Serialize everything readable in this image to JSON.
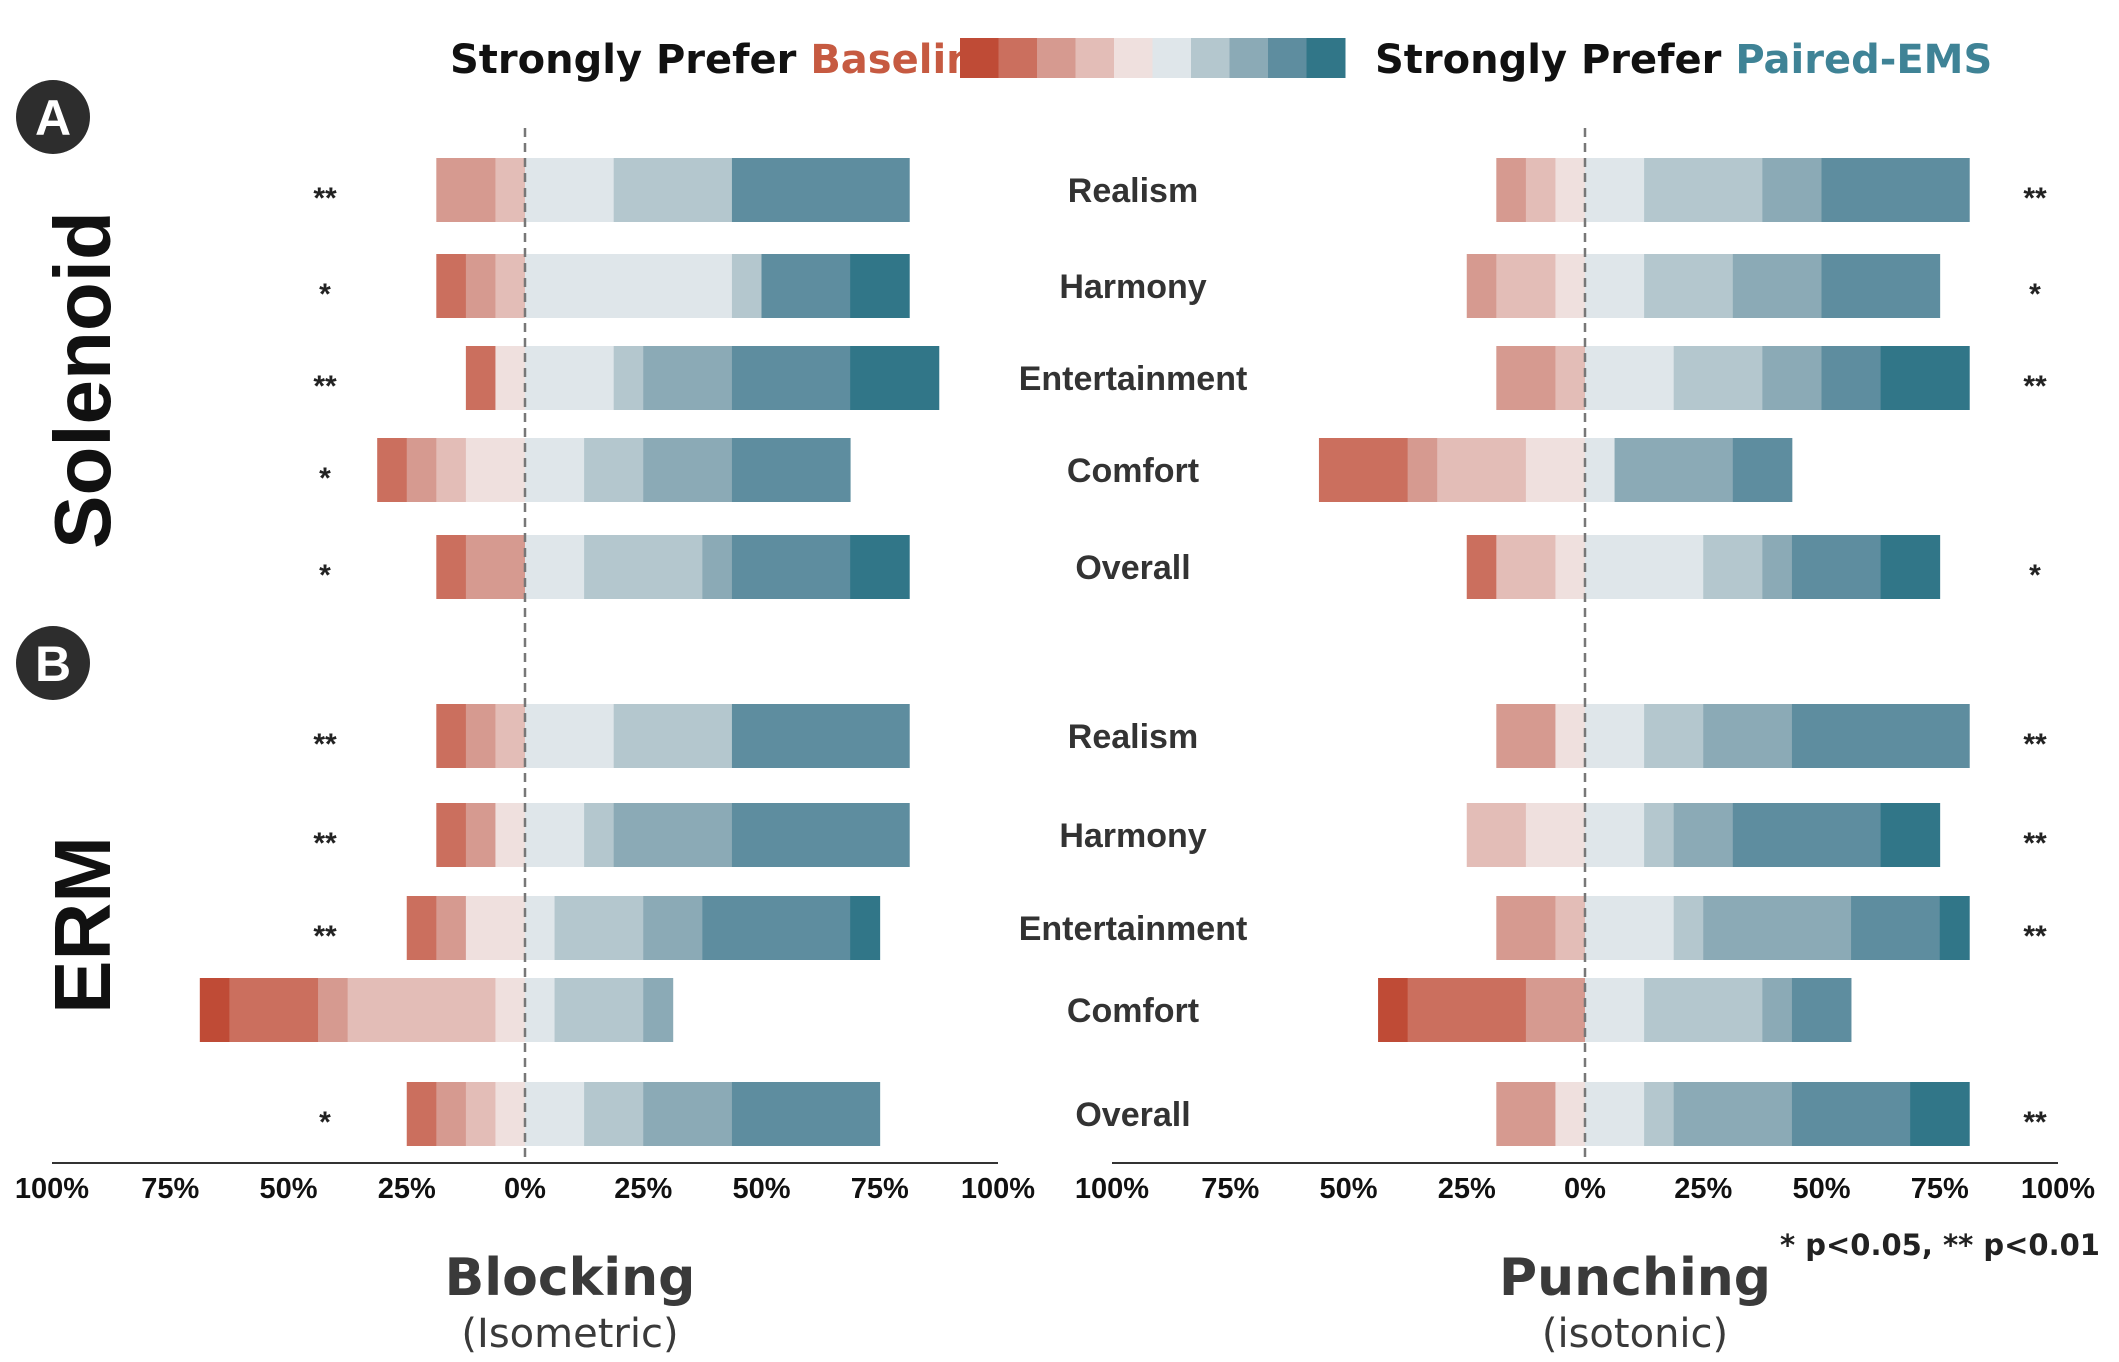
{
  "legend": {
    "left_prefix": "Strongly Prefer ",
    "left_highlight": "Baseline",
    "right_prefix": "Strongly Prefer ",
    "right_highlight": "Paired-EMS",
    "left_highlight_color": "#c65a41",
    "right_highlight_color": "#3f8396",
    "scale_colors": [
      "#bf4b36",
      "#cb6f5e",
      "#d69a90",
      "#e3bdb7",
      "#efe0de",
      "#dfe6ea",
      "#b4c7ce",
      "#8baab6",
      "#5e8d9f",
      "#317688"
    ]
  },
  "groups": [
    {
      "badge": "A",
      "label": "Solenoid"
    },
    {
      "badge": "B",
      "label": "ERM"
    }
  ],
  "note": "* p<0.05, ** p<0.01",
  "chart_data": {
    "type": "bar",
    "orientation": "horizontal-diverging-stacked",
    "categories": [
      "Realism",
      "Harmony",
      "Entertainment",
      "Comfort",
      "Overall"
    ],
    "scale_levels": [
      "strongly-prefer-baseline-1",
      "baseline-2",
      "baseline-3",
      "baseline-4",
      "baseline-5",
      "paired-ems-1",
      "paired-ems-2",
      "paired-ems-3",
      "paired-ems-4",
      "strongly-prefer-paired-ems-5"
    ],
    "x_ticks": [
      "100%",
      "75%",
      "50%",
      "25%",
      "0%",
      "25%",
      "50%",
      "75%",
      "100%"
    ],
    "xlim": [
      -100,
      100
    ],
    "panels": [
      {
        "title": "Blocking",
        "subtitle": "(Isometric)",
        "groups": [
          {
            "group": "Solenoid",
            "rows": [
              {
                "category": "Realism",
                "sig": "**",
                "segments": [
                  0,
                  0,
                  12.5,
                  6.25,
                  0,
                  18.75,
                  25,
                  0,
                  37.5,
                  0
                ]
              },
              {
                "category": "Harmony",
                "sig": "*",
                "segments": [
                  0,
                  6.25,
                  6.25,
                  6.25,
                  0,
                  43.75,
                  6.25,
                  0,
                  18.75,
                  12.5
                ]
              },
              {
                "category": "Entertainment",
                "sig": "**",
                "segments": [
                  0,
                  6.25,
                  0,
                  0,
                  6.25,
                  18.75,
                  6.25,
                  18.75,
                  25,
                  18.75
                ]
              },
              {
                "category": "Comfort",
                "sig": "*",
                "segments": [
                  0,
                  6.25,
                  6.25,
                  6.25,
                  12.5,
                  12.5,
                  12.5,
                  18.75,
                  25,
                  0
                ]
              },
              {
                "category": "Overall",
                "sig": "*",
                "segments": [
                  0,
                  6.25,
                  12.5,
                  0,
                  0,
                  12.5,
                  25,
                  6.25,
                  25,
                  12.5
                ]
              }
            ]
          },
          {
            "group": "ERM",
            "rows": [
              {
                "category": "Realism",
                "sig": "**",
                "segments": [
                  0,
                  6.25,
                  6.25,
                  6.25,
                  0,
                  18.75,
                  25,
                  0,
                  37.5,
                  0
                ]
              },
              {
                "category": "Harmony",
                "sig": "**",
                "segments": [
                  0,
                  6.25,
                  6.25,
                  0,
                  6.25,
                  12.5,
                  6.25,
                  25,
                  37.5,
                  0
                ]
              },
              {
                "category": "Entertainment",
                "sig": "**",
                "segments": [
                  0,
                  6.25,
                  6.25,
                  0,
                  12.5,
                  6.25,
                  18.75,
                  12.5,
                  31.25,
                  6.25
                ]
              },
              {
                "category": "Comfort",
                "sig": "",
                "segments": [
                  6.25,
                  18.75,
                  6.25,
                  31.25,
                  6.25,
                  6.25,
                  18.75,
                  6.25,
                  0,
                  0
                ]
              },
              {
                "category": "Overall",
                "sig": "*",
                "segments": [
                  0,
                  6.25,
                  6.25,
                  6.25,
                  6.25,
                  12.5,
                  12.5,
                  18.75,
                  31.25,
                  0
                ]
              }
            ]
          }
        ]
      },
      {
        "title": "Punching",
        "subtitle": "(isotonic)",
        "groups": [
          {
            "group": "Solenoid",
            "rows": [
              {
                "category": "Realism",
                "sig": "**",
                "segments": [
                  0,
                  0,
                  6.25,
                  6.25,
                  6.25,
                  12.5,
                  25,
                  12.5,
                  31.25,
                  0
                ]
              },
              {
                "category": "Harmony",
                "sig": "*",
                "segments": [
                  0,
                  0,
                  6.25,
                  12.5,
                  6.25,
                  12.5,
                  18.75,
                  18.75,
                  25,
                  0
                ]
              },
              {
                "category": "Entertainment",
                "sig": "**",
                "segments": [
                  0,
                  0,
                  12.5,
                  6.25,
                  0,
                  18.75,
                  18.75,
                  12.5,
                  12.5,
                  18.75
                ]
              },
              {
                "category": "Comfort",
                "sig": "",
                "segments": [
                  0,
                  18.75,
                  6.25,
                  18.75,
                  12.5,
                  6.25,
                  0,
                  25,
                  12.5,
                  0
                ]
              },
              {
                "category": "Overall",
                "sig": "*",
                "segments": [
                  0,
                  6.25,
                  0,
                  12.5,
                  6.25,
                  25,
                  12.5,
                  6.25,
                  18.75,
                  12.5
                ]
              }
            ]
          },
          {
            "group": "ERM",
            "rows": [
              {
                "category": "Realism",
                "sig": "**",
                "segments": [
                  0,
                  0,
                  12.5,
                  0,
                  6.25,
                  12.5,
                  12.5,
                  18.75,
                  37.5,
                  0
                ]
              },
              {
                "category": "Harmony",
                "sig": "**",
                "segments": [
                  0,
                  0,
                  0,
                  12.5,
                  12.5,
                  12.5,
                  6.25,
                  12.5,
                  31.25,
                  12.5
                ]
              },
              {
                "category": "Entertainment",
                "sig": "**",
                "segments": [
                  0,
                  0,
                  12.5,
                  6.25,
                  0,
                  18.75,
                  6.25,
                  31.25,
                  18.75,
                  6.25
                ]
              },
              {
                "category": "Comfort",
                "sig": "",
                "segments": [
                  6.25,
                  25,
                  12.5,
                  0,
                  0,
                  12.5,
                  25,
                  6.25,
                  12.5,
                  0
                ]
              },
              {
                "category": "Overall",
                "sig": "**",
                "segments": [
                  0,
                  0,
                  12.5,
                  0,
                  6.25,
                  12.5,
                  6.25,
                  25,
                  25,
                  12.5
                ]
              }
            ]
          }
        ]
      }
    ]
  }
}
